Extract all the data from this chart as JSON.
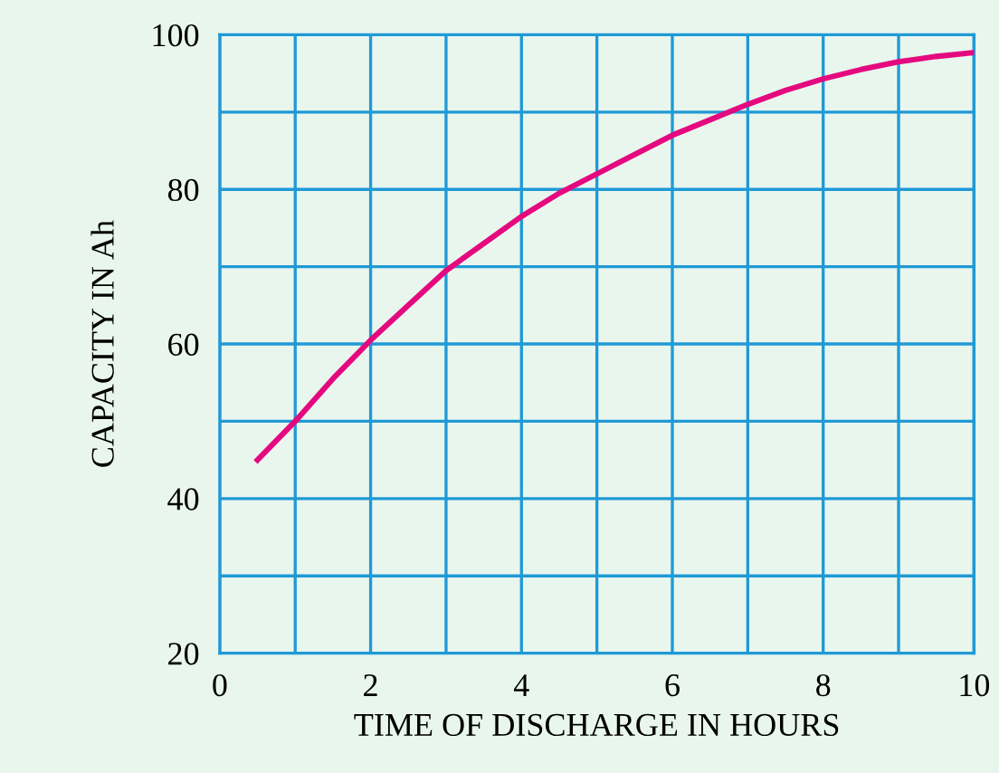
{
  "chart_data": {
    "type": "line",
    "xlabel": "TIME OF DISCHARGE IN HOURS",
    "ylabel": "CAPACITY IN Ah",
    "x": [
      0.5,
      1,
      1.5,
      2,
      2.5,
      3,
      3.5,
      4,
      4.5,
      5,
      5.5,
      6,
      6.5,
      7,
      7.5,
      8,
      8.5,
      9,
      9.5,
      10
    ],
    "series": [
      {
        "color": "#e5097f",
        "values": [
          45,
          50,
          55.5,
          60.5,
          65,
          69.5,
          73,
          76.5,
          79.5,
          82,
          84.5,
          87,
          89,
          91,
          92.8,
          94.3,
          95.5,
          96.5,
          97.2,
          97.7
        ]
      }
    ],
    "xlim": [
      0,
      10
    ],
    "ylim": [
      20,
      100
    ],
    "xticks": [
      0,
      {
        "value": 1,
        "label": null
      },
      2,
      {
        "value": 3,
        "label": null
      },
      4,
      {
        "value": 5,
        "label": null
      },
      6,
      {
        "value": 7,
        "label": null
      },
      8,
      {
        "value": 9,
        "label": null
      },
      10
    ],
    "yticks": [
      20,
      {
        "value": 30,
        "label": null
      },
      40,
      {
        "value": 50,
        "label": null
      },
      60,
      {
        "value": 70,
        "label": null
      },
      80,
      {
        "value": 90,
        "label": null
      },
      100
    ],
    "grid": true,
    "marker": "none",
    "line_style": "solid"
  }
}
